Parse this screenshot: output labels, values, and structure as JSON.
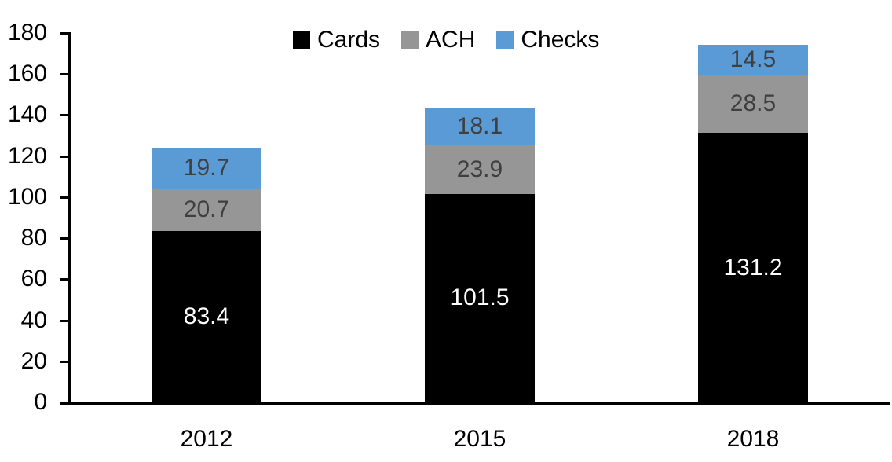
{
  "chart_data": {
    "type": "bar",
    "stacked": true,
    "title": "",
    "categories": [
      "2012",
      "2015",
      "2018"
    ],
    "series": [
      {
        "name": "Cards",
        "color": "#000000",
        "label_color": "#ffffff",
        "values": [
          83.4,
          101.5,
          131.2
        ]
      },
      {
        "name": "ACH",
        "color": "#969696",
        "label_color": "#3f3f3f",
        "values": [
          20.7,
          23.9,
          28.5
        ]
      },
      {
        "name": "Checks",
        "color": "#5b9bd5",
        "label_color": "#3f3f3f",
        "values": [
          19.7,
          18.1,
          14.5
        ]
      }
    ],
    "totals": [
      123.8,
      143.5,
      174.2
    ],
    "ylim": [
      0,
      180
    ],
    "ytick_step": 20,
    "yticklabels": [
      "0",
      "20",
      "40",
      "60",
      "80",
      "100",
      "120",
      "140",
      "160",
      "180"
    ],
    "xlabel": "",
    "ylabel": "",
    "grid": false,
    "legend_position": "top",
    "data_labels": "inside-center"
  },
  "colors": {
    "background": "#ffffff",
    "axis": "#000000",
    "accent_blue": "#5b9bd5",
    "accent_gray": "#969696",
    "accent_black": "#000000",
    "inside_label_dark": "#3f3f3f",
    "inside_label_light": "#ffffff"
  }
}
